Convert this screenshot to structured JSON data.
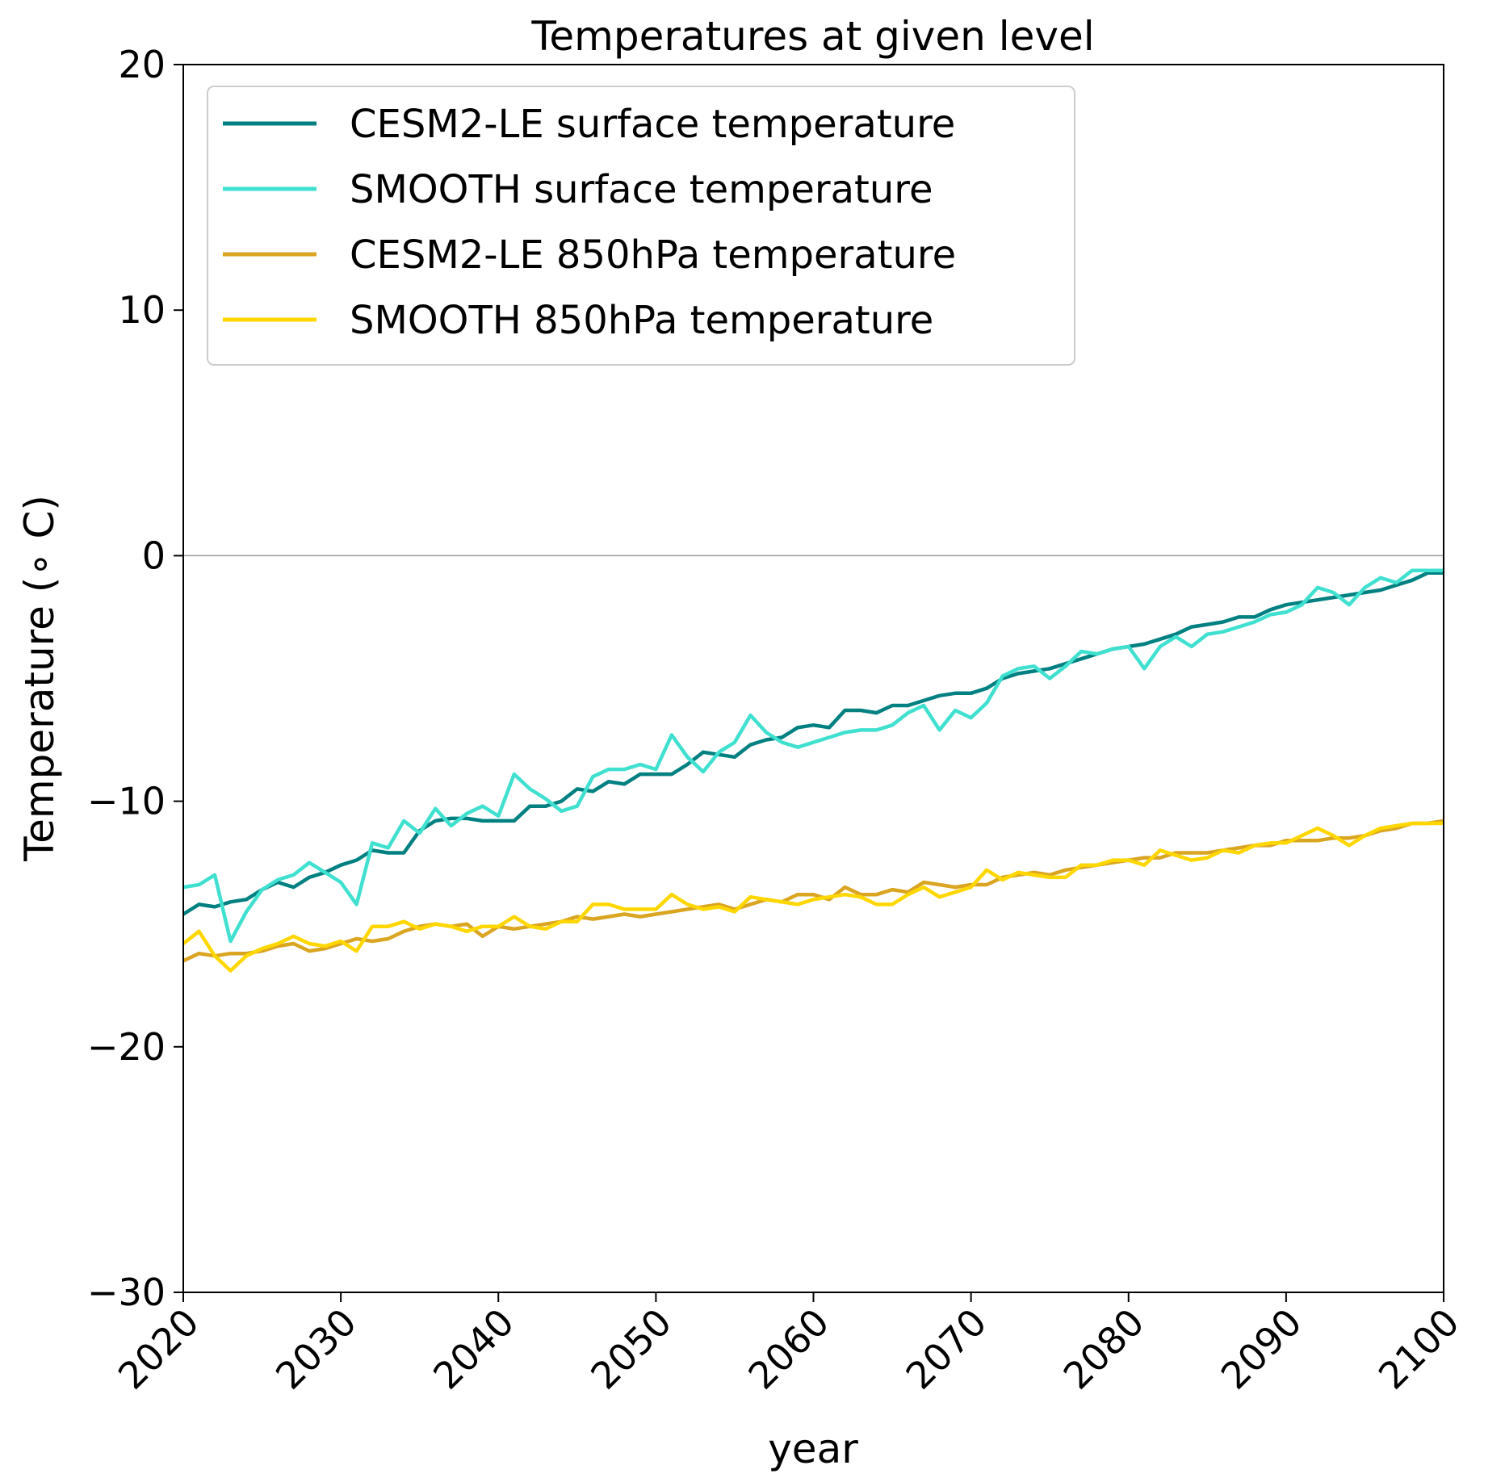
{
  "chart_data": {
    "type": "line",
    "title": "Temperatures at given level",
    "xlabel": "year",
    "ylabel": "Temperature (∘ C)",
    "xlim": [
      2020,
      2100
    ],
    "ylim": [
      -30,
      20
    ],
    "xticks": [
      "2020",
      "2030",
      "2040",
      "2050",
      "2060",
      "2070",
      "2080",
      "2090",
      "2100"
    ],
    "yticks": [
      "20",
      "10",
      "0",
      "−10",
      "−20",
      "−30"
    ],
    "zero_line": true,
    "grid": false,
    "legend_position": "upper-left",
    "x": [
      2020,
      2021,
      2022,
      2023,
      2024,
      2025,
      2026,
      2027,
      2028,
      2029,
      2030,
      2031,
      2032,
      2033,
      2034,
      2035,
      2036,
      2037,
      2038,
      2039,
      2040,
      2041,
      2042,
      2043,
      2044,
      2045,
      2046,
      2047,
      2048,
      2049,
      2050,
      2051,
      2052,
      2053,
      2054,
      2055,
      2056,
      2057,
      2058,
      2059,
      2060,
      2061,
      2062,
      2063,
      2064,
      2065,
      2066,
      2067,
      2068,
      2069,
      2070,
      2071,
      2072,
      2073,
      2074,
      2075,
      2076,
      2077,
      2078,
      2079,
      2080,
      2081,
      2082,
      2083,
      2084,
      2085,
      2086,
      2087,
      2088,
      2089,
      2090,
      2091,
      2092,
      2093,
      2094,
      2095,
      2096,
      2097,
      2098,
      2099,
      2100
    ],
    "series": [
      {
        "name": "CESM2-LE surface temperature",
        "color": "#008080",
        "values": [
          -14.6,
          -14.2,
          -14.3,
          -14.1,
          -14.0,
          -13.6,
          -13.3,
          -13.5,
          -13.1,
          -12.9,
          -12.6,
          -12.4,
          -12.0,
          -12.1,
          -12.1,
          -11.2,
          -10.8,
          -10.7,
          -10.7,
          -10.8,
          -10.8,
          -10.8,
          -10.2,
          -10.2,
          -10.0,
          -9.5,
          -9.6,
          -9.2,
          -9.3,
          -8.9,
          -8.9,
          -8.9,
          -8.5,
          -8.0,
          -8.1,
          -8.2,
          -7.7,
          -7.5,
          -7.4,
          -7.0,
          -6.9,
          -7.0,
          -6.3,
          -6.3,
          -6.4,
          -6.1,
          -6.1,
          -5.9,
          -5.7,
          -5.6,
          -5.6,
          -5.4,
          -5.0,
          -4.8,
          -4.7,
          -4.6,
          -4.4,
          -4.2,
          -4.0,
          -3.8,
          -3.7,
          -3.6,
          -3.4,
          -3.2,
          -2.9,
          -2.8,
          -2.7,
          -2.5,
          -2.5,
          -2.2,
          -2.0,
          -1.9,
          -1.8,
          -1.7,
          -1.6,
          -1.5,
          -1.4,
          -1.2,
          -1.0,
          -0.7,
          -0.7
        ]
      },
      {
        "name": "SMOOTH surface temperature",
        "color": "#40E0D0",
        "values": [
          -13.5,
          -13.4,
          -13.0,
          -15.7,
          -14.5,
          -13.6,
          -13.2,
          -13.0,
          -12.5,
          -12.9,
          -13.3,
          -14.2,
          -11.7,
          -11.9,
          -10.8,
          -11.3,
          -10.3,
          -11.0,
          -10.5,
          -10.2,
          -10.6,
          -8.9,
          -9.5,
          -9.9,
          -10.4,
          -10.2,
          -9.0,
          -8.7,
          -8.7,
          -8.5,
          -8.7,
          -7.3,
          -8.2,
          -8.8,
          -8.0,
          -7.6,
          -6.5,
          -7.2,
          -7.6,
          -7.8,
          -7.6,
          -7.4,
          -7.2,
          -7.1,
          -7.1,
          -6.9,
          -6.4,
          -6.1,
          -7.1,
          -6.3,
          -6.6,
          -6.0,
          -4.9,
          -4.6,
          -4.5,
          -5.0,
          -4.5,
          -3.9,
          -4.0,
          -3.8,
          -3.7,
          -4.6,
          -3.7,
          -3.3,
          -3.7,
          -3.2,
          -3.1,
          -2.9,
          -2.7,
          -2.4,
          -2.3,
          -2.0,
          -1.3,
          -1.5,
          -2.0,
          -1.3,
          -0.9,
          -1.1,
          -0.6,
          -0.6,
          -0.6
        ]
      },
      {
        "name": "CESM2-LE 850hPa temperature",
        "color": "#DAA520",
        "values": [
          -16.5,
          -16.2,
          -16.3,
          -16.2,
          -16.2,
          -16.1,
          -15.9,
          -15.8,
          -16.1,
          -16.0,
          -15.8,
          -15.6,
          -15.7,
          -15.6,
          -15.3,
          -15.1,
          -15.0,
          -15.1,
          -15.0,
          -15.5,
          -15.1,
          -15.2,
          -15.1,
          -15.0,
          -14.9,
          -14.7,
          -14.8,
          -14.7,
          -14.6,
          -14.7,
          -14.6,
          -14.5,
          -14.4,
          -14.3,
          -14.2,
          -14.4,
          -14.2,
          -14.0,
          -14.1,
          -13.8,
          -13.8,
          -14.0,
          -13.5,
          -13.8,
          -13.8,
          -13.6,
          -13.7,
          -13.3,
          -13.4,
          -13.5,
          -13.4,
          -13.4,
          -13.1,
          -13.0,
          -12.9,
          -13.0,
          -12.8,
          -12.7,
          -12.6,
          -12.5,
          -12.4,
          -12.3,
          -12.3,
          -12.1,
          -12.1,
          -12.1,
          -12.0,
          -11.9,
          -11.8,
          -11.8,
          -11.6,
          -11.6,
          -11.6,
          -11.5,
          -11.5,
          -11.4,
          -11.2,
          -11.1,
          -10.9,
          -10.9,
          -10.8
        ]
      },
      {
        "name": "SMOOTH 850hPa temperature",
        "color": "#FFD700",
        "values": [
          -15.8,
          -15.3,
          -16.3,
          -16.9,
          -16.3,
          -16.0,
          -15.8,
          -15.5,
          -15.8,
          -15.9,
          -15.7,
          -16.1,
          -15.1,
          -15.1,
          -14.9,
          -15.2,
          -15.0,
          -15.1,
          -15.3,
          -15.1,
          -15.1,
          -14.7,
          -15.1,
          -15.2,
          -14.9,
          -14.9,
          -14.2,
          -14.2,
          -14.4,
          -14.4,
          -14.4,
          -13.8,
          -14.2,
          -14.4,
          -14.3,
          -14.5,
          -13.9,
          -14.0,
          -14.1,
          -14.2,
          -14.0,
          -13.9,
          -13.8,
          -13.9,
          -14.2,
          -14.2,
          -13.8,
          -13.5,
          -13.9,
          -13.7,
          -13.5,
          -12.8,
          -13.2,
          -12.9,
          -13.0,
          -13.1,
          -13.1,
          -12.6,
          -12.6,
          -12.4,
          -12.4,
          -12.6,
          -12.0,
          -12.2,
          -12.4,
          -12.3,
          -12.0,
          -12.1,
          -11.8,
          -11.7,
          -11.7,
          -11.4,
          -11.1,
          -11.4,
          -11.8,
          -11.4,
          -11.1,
          -11.0,
          -10.9,
          -10.9,
          -10.9
        ]
      }
    ]
  }
}
